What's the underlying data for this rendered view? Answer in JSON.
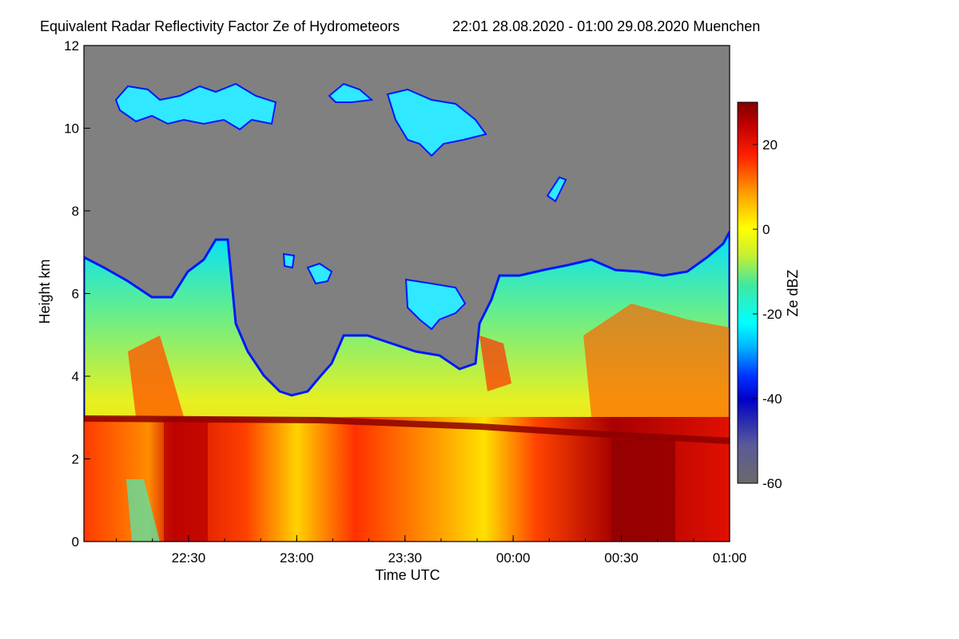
{
  "chart_data": {
    "type": "heatmap",
    "title": "Equivalent Radar Reflectivity Factor Ze of Hydrometeors",
    "time_range": "22:01 28.08.2020 - 01:00 29.08.2020 Muenchen",
    "xlabel": "Time UTC",
    "ylabel": "Height km",
    "x_ticks": [
      "22:30",
      "23:00",
      "23:30",
      "00:00",
      "00:30",
      "01:00"
    ],
    "x_range": [
      "22:01",
      "01:00"
    ],
    "y_ticks": [
      0,
      2,
      4,
      6,
      8,
      10,
      12
    ],
    "ylim": [
      0,
      12
    ],
    "colorbar": {
      "label": "Ze dBZ",
      "range": [
        -60,
        30
      ],
      "ticks": [
        20,
        0,
        -20,
        -40,
        -60
      ]
    },
    "background_color": "#808080",
    "melting_layer_height_km": [
      2.9,
      2.5
    ]
  }
}
